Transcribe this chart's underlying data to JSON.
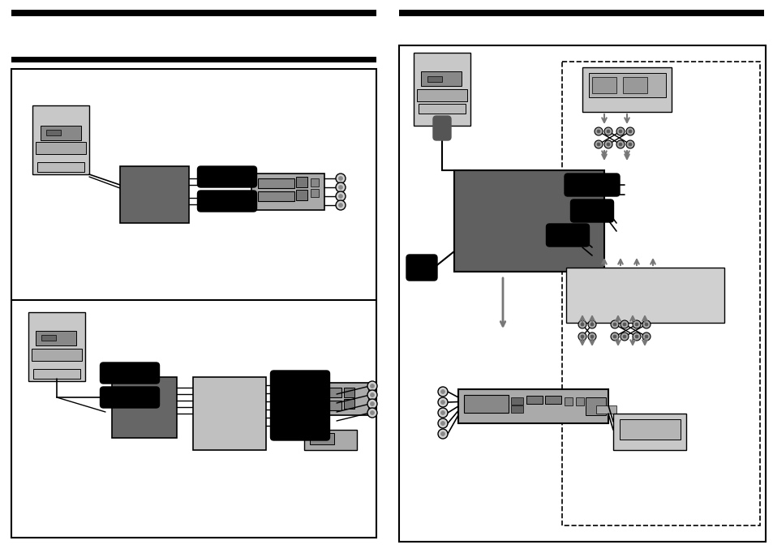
{
  "bg": "#ffffff",
  "black": "#000000",
  "dark_gray": "#555555",
  "med_gray": "#888888",
  "light_gray": "#bbbbbb",
  "lighter_gray": "#d0d0d0",
  "changer_gray": "#c0c0c0"
}
